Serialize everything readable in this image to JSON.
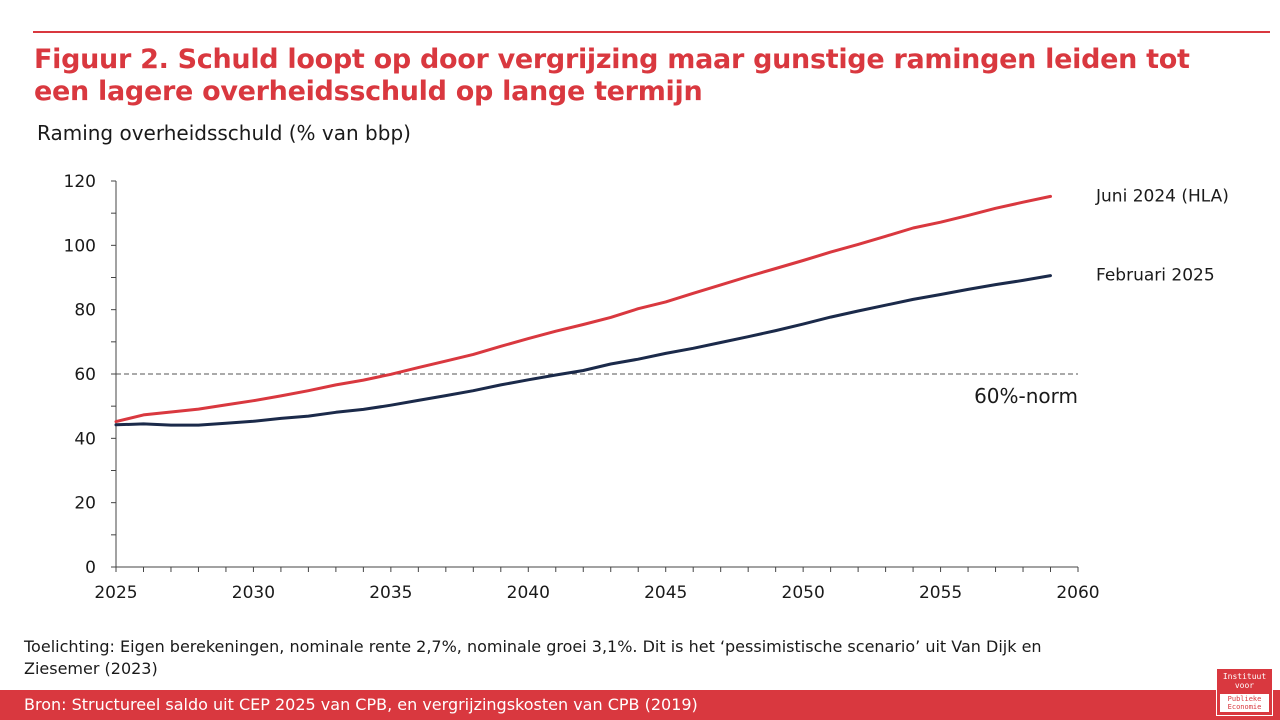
{
  "title": "Figuur 2. Schuld loopt op door vergrijzing maar gunstige ramingen leiden tot een lagere overheidsschuld op lange termijn",
  "subtitle": "Raming overheidsschuld (% van bbp)",
  "note": "Toelichting: Eigen berekeningen, nominale rente 2,7%, nominale groei 3,1%. Dit is het ‘pessimistische scenario’ uit Van Dijk en Ziesemer (2023)",
  "source": "Bron: Structureel saldo uit CEP 2025 van CPB, en vergrijzingskosten van CPB (2019)",
  "logo": {
    "line1": "Instituut",
    "line2": "voor",
    "line3": "Publieke",
    "line4": "Economie"
  },
  "colors": {
    "accent": "#d9383f",
    "navy": "#1b2a4a"
  },
  "chart_data": {
    "type": "line",
    "title": "",
    "xlabel": "",
    "ylabel": "",
    "xlim": [
      2025,
      2060
    ],
    "ylim": [
      0,
      120
    ],
    "xticks": [
      2025,
      2030,
      2035,
      2040,
      2045,
      2050,
      2055,
      2060
    ],
    "yticks": [
      0,
      20,
      40,
      60,
      80,
      100,
      120
    ],
    "grid": false,
    "x": [
      2025,
      2026,
      2027,
      2028,
      2029,
      2030,
      2031,
      2032,
      2033,
      2034,
      2035,
      2036,
      2037,
      2038,
      2039,
      2040,
      2041,
      2042,
      2043,
      2044,
      2045,
      2046,
      2047,
      2048,
      2049,
      2050,
      2051,
      2052,
      2053,
      2054,
      2055,
      2056,
      2057,
      2058,
      2059
    ],
    "series": [
      {
        "name": "Juni 2024 (HLA)",
        "color": "#d9383f",
        "values": [
          45.2,
          47.3,
          48.2,
          49.1,
          50.4,
          51.7,
          53.2,
          54.8,
          56.6,
          58.1,
          59.9,
          62.0,
          64.0,
          66.1,
          68.6,
          71.0,
          73.3,
          75.4,
          77.6,
          80.3,
          82.4,
          85.1,
          87.7,
          90.3,
          92.8,
          95.3,
          97.9,
          100.3,
          102.8,
          105.4,
          107.2,
          109.3,
          111.5,
          113.4,
          115.2
        ]
      },
      {
        "name": "Februari 2025",
        "color": "#1b2a4a",
        "values": [
          44.2,
          44.5,
          44.1,
          44.1,
          44.7,
          45.3,
          46.2,
          46.9,
          48.1,
          49.0,
          50.3,
          51.8,
          53.3,
          54.8,
          56.6,
          58.2,
          59.7,
          61.1,
          63.1,
          64.6,
          66.4,
          68.0,
          69.8,
          71.6,
          73.5,
          75.5,
          77.7,
          79.6,
          81.4,
          83.2,
          84.7,
          86.3,
          87.8,
          89.1,
          90.6
        ]
      }
    ],
    "reference_line": {
      "value": 60,
      "label": "60%-norm",
      "style": "dashed"
    }
  }
}
